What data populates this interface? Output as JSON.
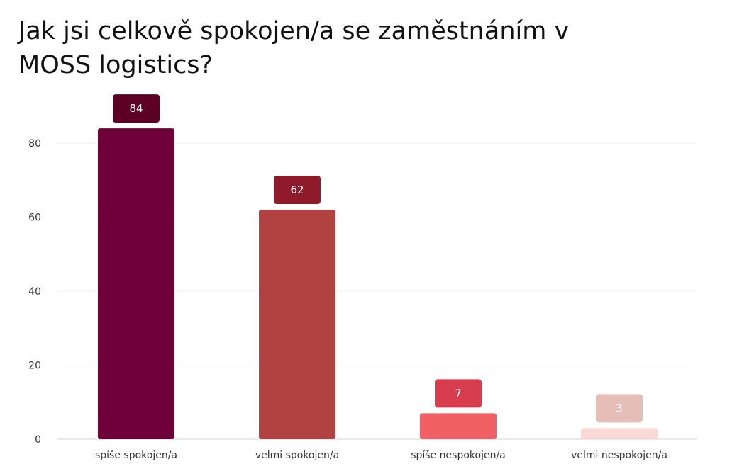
{
  "title": "    Jak jsi celkově spokojen/a se zaměstnáním v\nMOSS logistics?",
  "chart_data": {
    "type": "bar",
    "title": "    Jak jsi celkově spokojen/a se zaměstnáním v\nMOSS logistics?",
    "categories": [
      "spíše spokojen/a",
      "velmi spokojen/a",
      "spíše nespokojen/a",
      "velmi nespokojen/a"
    ],
    "values": [
      84,
      62,
      7,
      3
    ],
    "data_labels": [
      "84",
      "62",
      "7",
      "3"
    ],
    "bar_colors": [
      "#6e003a",
      "#b24142",
      "#f06064",
      "#fad9d7"
    ],
    "label_colors": [
      "#5c0024",
      "#8e1a2a",
      "#d73d4c",
      "#e5beb8"
    ],
    "ylim": [
      0,
      90
    ],
    "yticks": [
      0,
      20,
      40,
      60,
      80
    ],
    "ytick_labels": [
      "0",
      "20",
      "40",
      "60",
      "80"
    ],
    "xlabel": "",
    "ylabel": "",
    "grid": true,
    "legend": "none"
  }
}
